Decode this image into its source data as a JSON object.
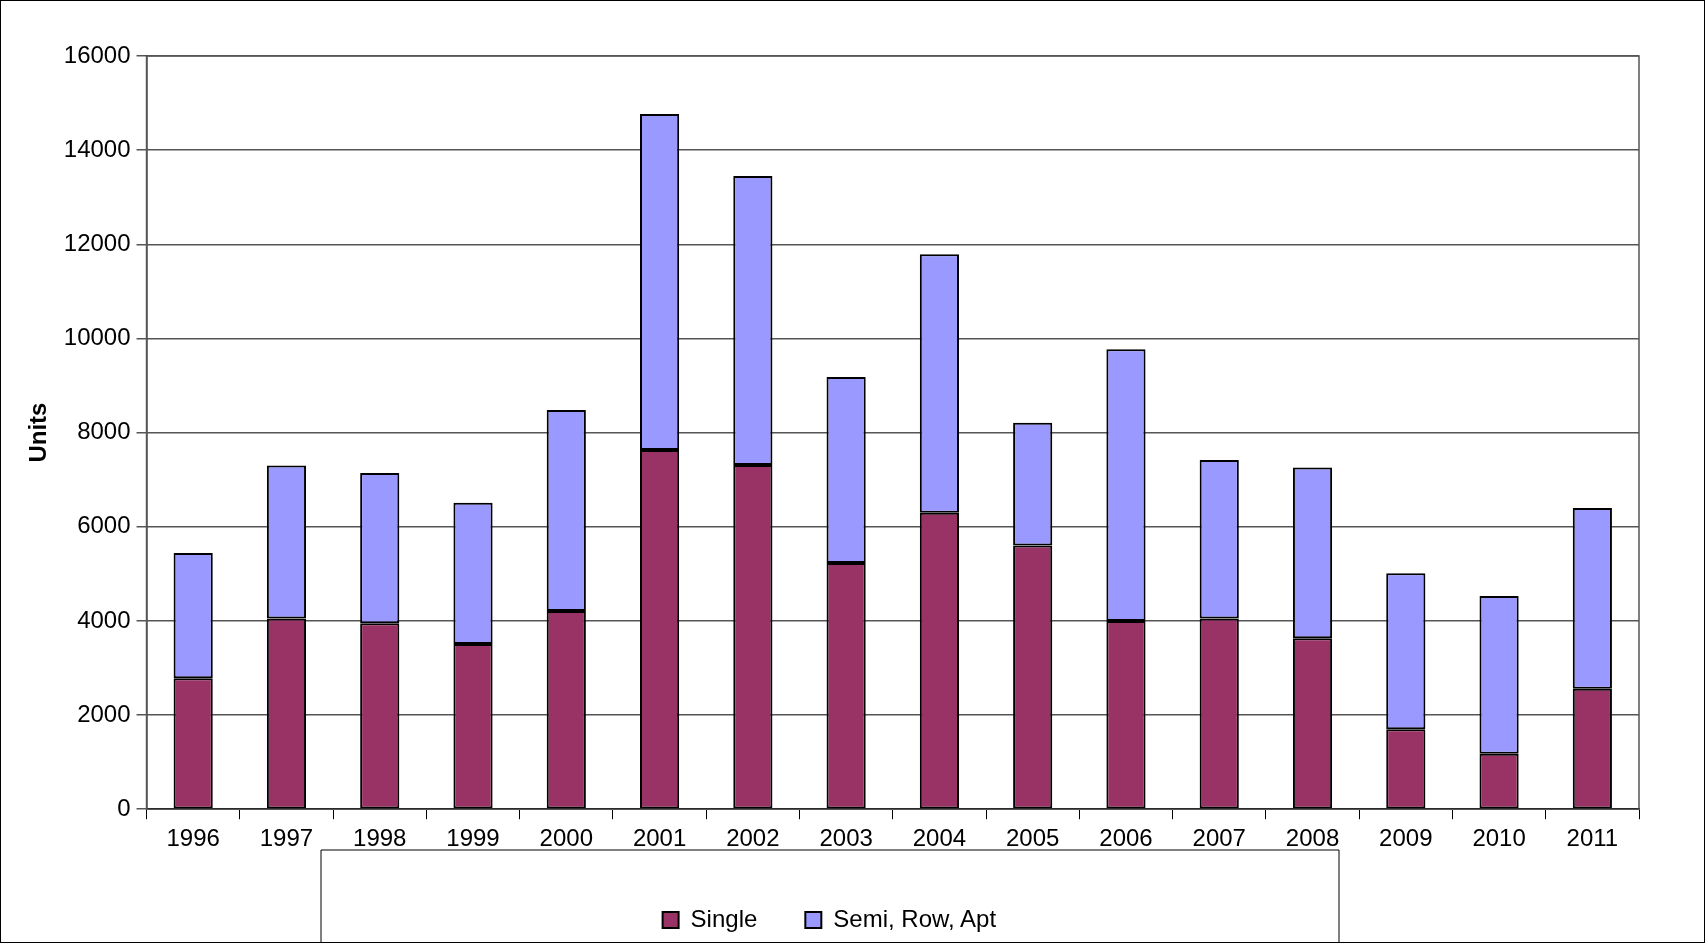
{
  "chart_data": {
    "type": "bar",
    "stacked": true,
    "ylabel": "Units",
    "categories": [
      "1996",
      "1997",
      "1998",
      "1999",
      "2000",
      "2001",
      "2002",
      "2003",
      "2004",
      "2005",
      "2006",
      "2007",
      "2008",
      "2009",
      "2010",
      "2011"
    ],
    "series": [
      {
        "name": "Single",
        "color": "#993366",
        "values": [
          2780,
          4050,
          3950,
          3510,
          4210,
          7630,
          7310,
          5230,
          6300,
          5600,
          4000,
          4050,
          3630,
          1700,
          1180,
          2560
        ]
      },
      {
        "name": "Semi, Row, Apt",
        "color": "#9999ff",
        "values": [
          2660,
          3250,
          3190,
          3000,
          4270,
          7140,
          6140,
          3950,
          5490,
          2610,
          5770,
          3370,
          3630,
          3310,
          3350,
          3840
        ]
      }
    ],
    "ylim": [
      0,
      16000
    ],
    "yticks": [
      0,
      2000,
      4000,
      6000,
      8000,
      10000,
      12000,
      14000,
      16000
    ],
    "grid": "y",
    "legend": "bottom"
  }
}
